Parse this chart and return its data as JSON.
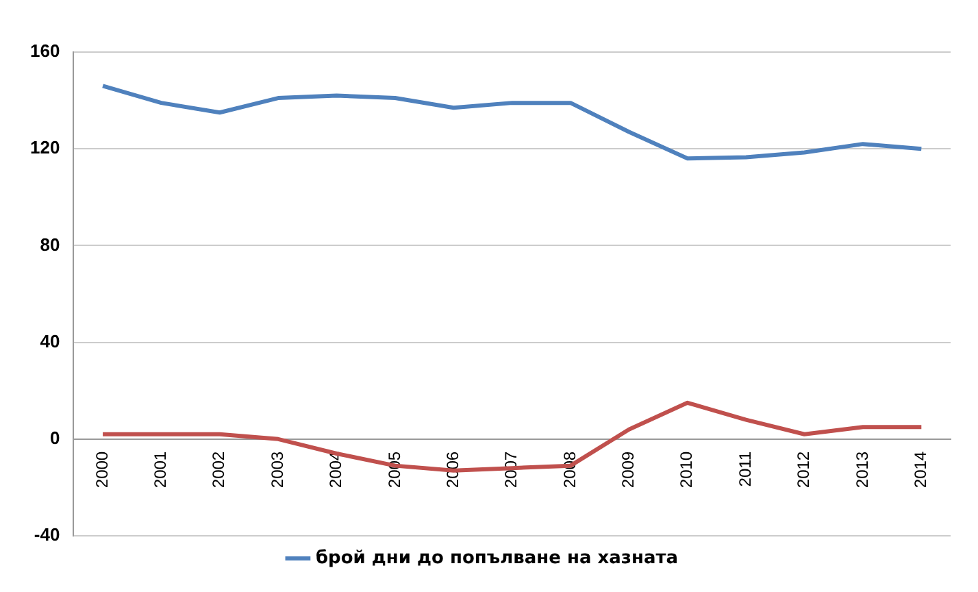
{
  "chart_data": {
    "type": "line",
    "categories": [
      "2000",
      "2001",
      "2002",
      "2003",
      "2004",
      "2005",
      "2006",
      "2007",
      "2008",
      "2009",
      "2010",
      "2011",
      "2012",
      "2013",
      "2014"
    ],
    "series": [
      {
        "name": "брой дни до попълване на хазната",
        "color": "#4f81bd",
        "values": [
          146,
          139,
          135,
          141,
          142,
          141,
          137,
          139,
          139,
          127,
          116,
          116.5,
          118.5,
          122,
          120
        ]
      },
      {
        "color": "#c0504d",
        "values": [
          2,
          2,
          2,
          0,
          -6,
          -11,
          -13,
          -12,
          -11,
          4,
          15,
          8,
          2,
          5,
          5
        ]
      }
    ],
    "ylim": [
      -40,
      160
    ],
    "yticks": [
      -40,
      0,
      40,
      80,
      120,
      160
    ],
    "grid": "y",
    "legend": "bottom",
    "marker": "none",
    "line_style": "solid"
  }
}
